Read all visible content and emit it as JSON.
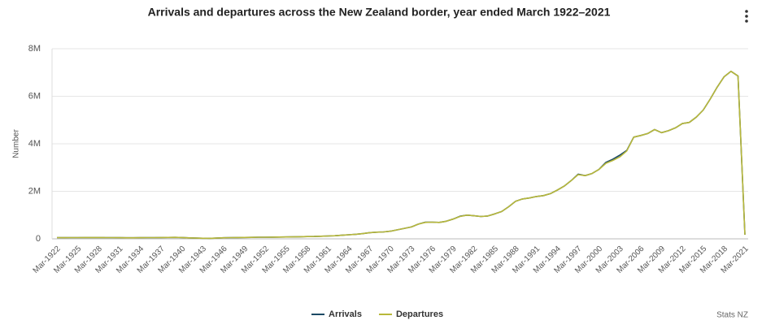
{
  "chart_data": {
    "type": "line",
    "title": "Arrivals and departures across the New Zealand border, year ended March 1922–2021",
    "y_label": "Number",
    "source": "Stats NZ",
    "legend": "bottom",
    "grid": true,
    "categories": [
      "Mar-1922",
      null,
      null,
      "Mar-1925",
      null,
      null,
      "Mar-1928",
      null,
      null,
      "Mar-1931",
      null,
      null,
      "Mar-1934",
      null,
      null,
      "Mar-1937",
      null,
      null,
      "Mar-1940",
      null,
      null,
      "Mar-1943",
      null,
      null,
      "Mar-1946",
      null,
      null,
      "Mar-1949",
      null,
      null,
      "Mar-1952",
      null,
      null,
      "Mar-1955",
      null,
      null,
      "Mar-1958",
      null,
      null,
      "Mar-1961",
      null,
      null,
      "Mar-1964",
      null,
      null,
      "Mar-1967",
      null,
      null,
      "Mar-1970",
      null,
      null,
      "Mar-1973",
      null,
      null,
      "Mar-1976",
      null,
      null,
      "Mar-1979",
      null,
      null,
      "Mar-1982",
      null,
      null,
      "Mar-1985",
      null,
      null,
      "Mar-1988",
      null,
      null,
      "Mar-1991",
      null,
      null,
      "Mar-1994",
      null,
      null,
      "Mar-1997",
      null,
      null,
      "Mar-2000",
      null,
      null,
      "Mar-2003",
      null,
      null,
      "Mar-2006",
      null,
      null,
      "Mar-2009",
      null,
      null,
      "Mar-2012",
      null,
      null,
      "Mar-2015",
      null,
      null,
      "Mar-2018",
      null,
      null,
      "Mar-2021"
    ],
    "ylim": [
      0,
      8000000
    ],
    "yticks": [
      0,
      {
        "value": 2000000,
        "label": "2M"
      },
      {
        "value": 4000000,
        "label": "4M"
      },
      {
        "value": 6000000,
        "label": "6M"
      },
      {
        "value": 8000000,
        "label": "8M"
      }
    ],
    "series": [
      {
        "name": "Arrivals",
        "color": "#1b4965",
        "values": [
          50000,
          48000,
          50000,
          52000,
          55000,
          55000,
          53000,
          52000,
          50000,
          48000,
          45000,
          46000,
          48000,
          50000,
          52000,
          55000,
          58000,
          60000,
          55000,
          40000,
          30000,
          25000,
          22000,
          30000,
          45000,
          50000,
          55000,
          58000,
          62000,
          68000,
          70000,
          72000,
          75000,
          78000,
          82000,
          88000,
          95000,
          100000,
          110000,
          120000,
          130000,
          150000,
          170000,
          190000,
          220000,
          260000,
          280000,
          290000,
          320000,
          380000,
          440000,
          500000,
          620000,
          700000,
          700000,
          690000,
          740000,
          830000,
          950000,
          1000000,
          970000,
          940000,
          960000,
          1050000,
          1150000,
          1350000,
          1580000,
          1680000,
          1720000,
          1780000,
          1820000,
          1900000,
          2050000,
          2220000,
          2450000,
          2720000,
          2660000,
          2750000,
          2920000,
          3220000,
          3350000,
          3520000,
          3720000,
          4280000,
          4350000,
          4430000,
          4600000,
          4470000,
          4550000,
          4670000,
          4850000,
          4900000,
          5120000,
          5420000,
          5880000,
          6380000,
          6820000,
          7050000,
          6850000,
          170000
        ]
      },
      {
        "name": "Departures",
        "color": "#b8b83a",
        "values": [
          50000,
          48000,
          50000,
          52000,
          55000,
          55000,
          53000,
          52000,
          50000,
          48000,
          45000,
          46000,
          48000,
          50000,
          52000,
          55000,
          58000,
          60000,
          55000,
          40000,
          30000,
          25000,
          22000,
          30000,
          45000,
          50000,
          55000,
          58000,
          62000,
          68000,
          70000,
          72000,
          75000,
          78000,
          82000,
          88000,
          95000,
          100000,
          110000,
          120000,
          130000,
          150000,
          170000,
          190000,
          220000,
          260000,
          280000,
          290000,
          320000,
          380000,
          440000,
          500000,
          620000,
          690000,
          700000,
          690000,
          740000,
          830000,
          940000,
          1000000,
          970000,
          940000,
          960000,
          1050000,
          1150000,
          1350000,
          1580000,
          1680000,
          1720000,
          1780000,
          1820000,
          1900000,
          2050000,
          2220000,
          2450000,
          2700000,
          2660000,
          2750000,
          2920000,
          3180000,
          3300000,
          3450000,
          3700000,
          4280000,
          4350000,
          4430000,
          4600000,
          4470000,
          4550000,
          4670000,
          4850000,
          4900000,
          5120000,
          5420000,
          5880000,
          6380000,
          6820000,
          7050000,
          6850000,
          170000
        ]
      }
    ]
  }
}
